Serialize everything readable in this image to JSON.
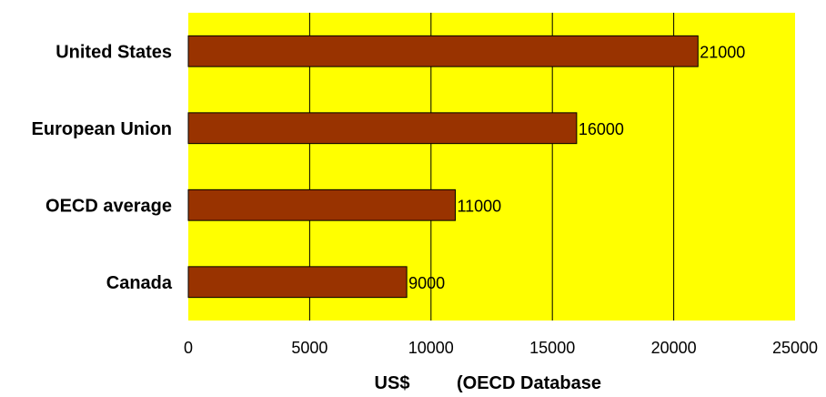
{
  "chart_data": {
    "type": "bar",
    "orientation": "horizontal",
    "categories": [
      "United States",
      "European Union",
      "OECD average",
      "Canada"
    ],
    "values": [
      21000,
      16000,
      11000,
      9000
    ],
    "data_labels": [
      "21000",
      "16000",
      "11000",
      "9000"
    ],
    "xlim": [
      0,
      25000
    ],
    "x_ticks": [
      0,
      5000,
      10000,
      15000,
      20000,
      25000
    ],
    "x_tick_labels": [
      "0",
      "5000",
      "10000",
      "15000",
      "20000",
      "25000"
    ],
    "xlabel_parts": [
      "US$",
      "(OECD Database"
    ],
    "title": "",
    "grid": "vertical",
    "legend": "none",
    "colors": {
      "plot_background": "#ffff00",
      "bar_fill": "#993300",
      "bar_stroke": "#000000",
      "gridline": "#000000"
    }
  }
}
